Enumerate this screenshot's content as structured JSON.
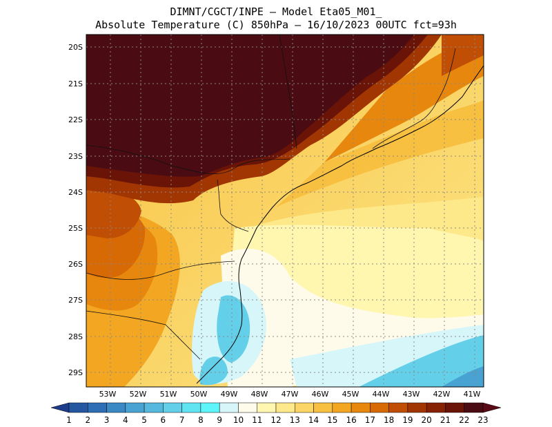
{
  "title": {
    "line1": "DIMNT/CGCT/INPE —  Model Eta05_M01_",
    "line2": "Absolute Temperature (C) 850hPa —  16/10/2023 00UTC fct=93h"
  },
  "map": {
    "lat_labels": [
      "20S",
      "21S",
      "22S",
      "23S",
      "24S",
      "25S",
      "26S",
      "27S",
      "28S",
      "29S"
    ],
    "lon_labels": [
      "53W",
      "52W",
      "51W",
      "50W",
      "49W",
      "48W",
      "47W",
      "46W",
      "45W",
      "44W",
      "43W",
      "42W",
      "41W"
    ]
  },
  "colorbar": {
    "labels": [
      "1",
      "2",
      "3",
      "4",
      "5",
      "6",
      "7",
      "8",
      "9",
      "10",
      "11",
      "12",
      "13",
      "14",
      "15",
      "16",
      "17",
      "18",
      "19",
      "20",
      "21",
      "22",
      "23"
    ],
    "colors": [
      "#1e3c8c",
      "#2457a0",
      "#2d6eb4",
      "#3a88c4",
      "#48a2d2",
      "#56b8dc",
      "#63cfe8",
      "#60e4f2",
      "#5df5fa",
      "#d6f6fa",
      "#fffbea",
      "#fff6b0",
      "#fde88a",
      "#fbd666",
      "#f7c040",
      "#f2a622",
      "#e8870e",
      "#d86a06",
      "#c04e04",
      "#a23602",
      "#862202",
      "#6a1408",
      "#4a0c12",
      "#5a0a14"
    ]
  }
}
